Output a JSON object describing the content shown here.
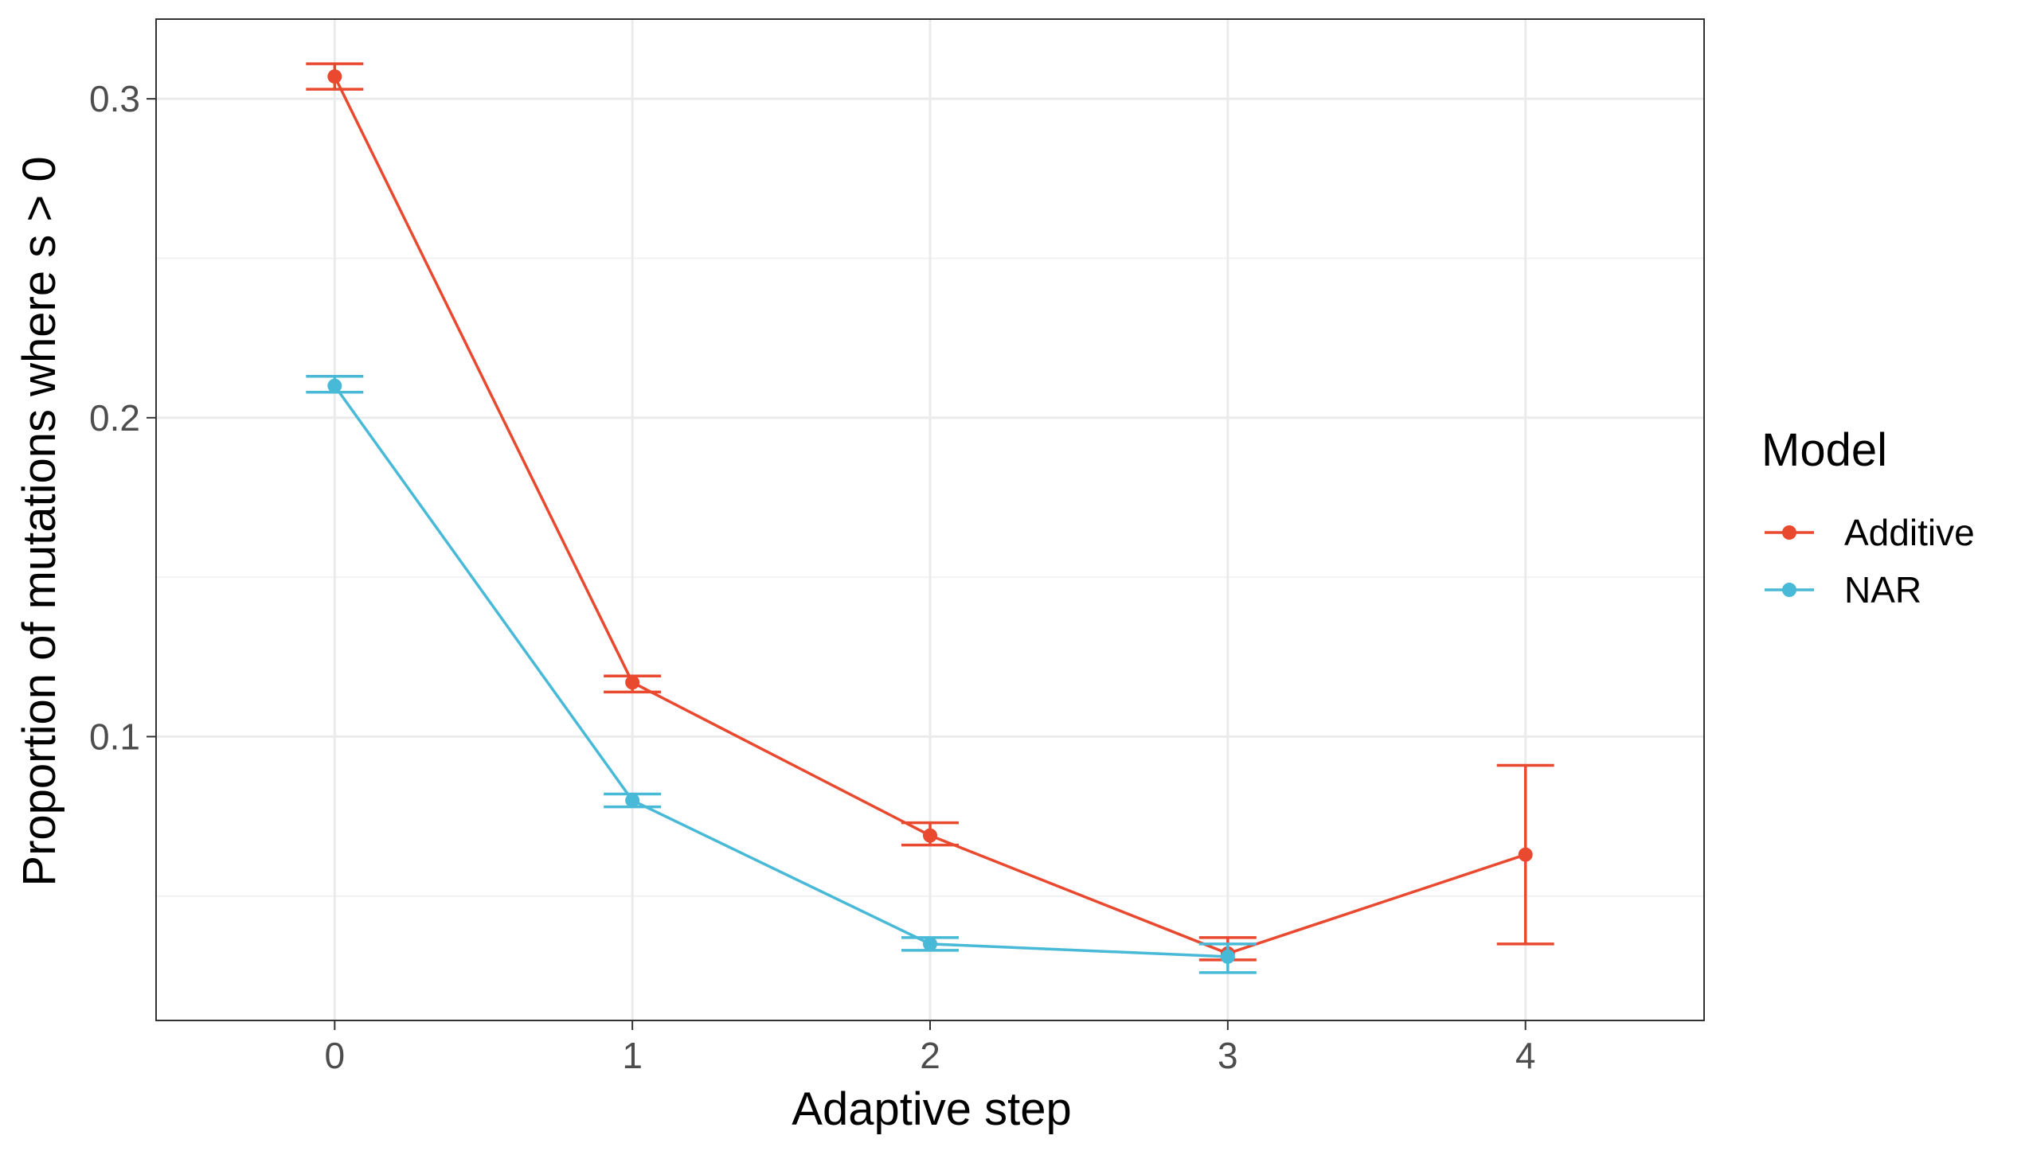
{
  "chart_data": {
    "type": "line",
    "xlabel": "Adaptive step",
    "ylabel": "Proportion of mutations where s > 0",
    "x": [
      0,
      1,
      2,
      3,
      4
    ],
    "x_ticks": [
      "0",
      "1",
      "2",
      "3",
      "4"
    ],
    "y_ticks": [
      "0.1",
      "0.2",
      "0.3"
    ],
    "y_tick_values": [
      0.1,
      0.2,
      0.3
    ],
    "xlim": [
      -0.6,
      4.6
    ],
    "ylim": [
      0.011,
      0.325
    ],
    "grid": true,
    "error_bars": true,
    "legend": {
      "title": "Model",
      "position": "right"
    },
    "series": [
      {
        "name": "Additive",
        "color": "#E8492F",
        "x": [
          0,
          1,
          2,
          3,
          4
        ],
        "values": [
          0.307,
          0.117,
          0.069,
          0.032,
          0.063
        ],
        "lower": [
          0.303,
          0.114,
          0.066,
          0.03,
          0.035
        ],
        "upper": [
          0.311,
          0.119,
          0.073,
          0.037,
          0.091
        ]
      },
      {
        "name": "NAR",
        "color": "#48B9D6",
        "x": [
          0,
          1,
          2,
          3
        ],
        "values": [
          0.21,
          0.08,
          0.035,
          0.031
        ],
        "lower": [
          0.208,
          0.078,
          0.033,
          0.026
        ],
        "upper": [
          0.213,
          0.082,
          0.037,
          0.035
        ]
      }
    ]
  }
}
